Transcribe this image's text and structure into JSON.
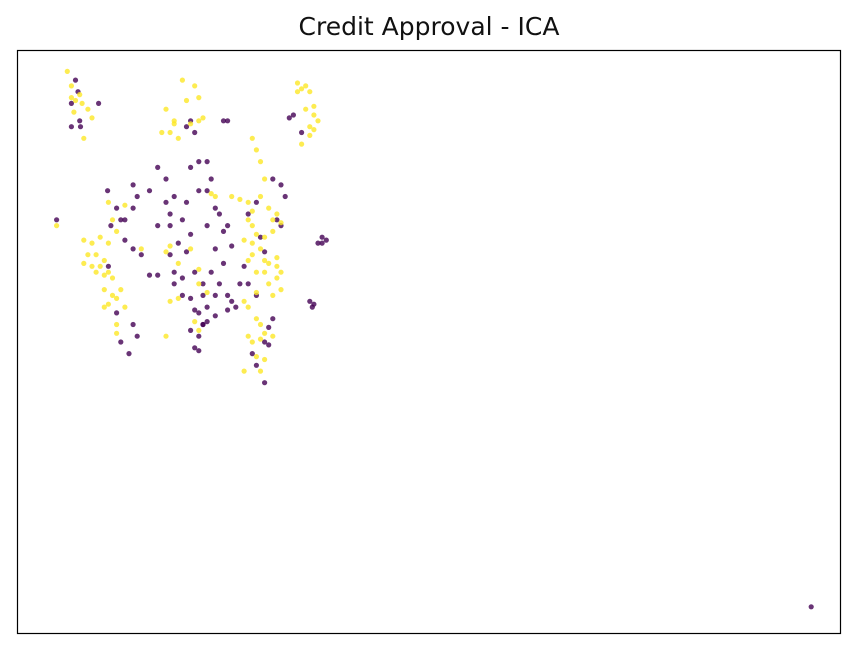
{
  "chart_data": {
    "type": "scatter",
    "title": "Credit Approval - ICA",
    "xlabel": "",
    "ylabel": "",
    "xlim": [
      0,
      100
    ],
    "ylim": [
      0,
      100
    ],
    "ticks": false,
    "grid": false,
    "legend": "none",
    "colors": {
      "class_0": "#440154",
      "class_1": "#fde725"
    },
    "point_alpha": 0.8,
    "series": [
      {
        "color": "#440154",
        "points": [
          [
            7.0,
            95.0
          ],
          [
            7.3,
            93.0
          ],
          [
            6.5,
            91.0
          ],
          [
            7.5,
            88.0
          ],
          [
            9.8,
            91.0
          ],
          [
            6.5,
            87.0
          ],
          [
            7.6,
            87.0
          ],
          [
            4.7,
            71.0
          ],
          [
            12.5,
            71.0
          ],
          [
            10.9,
            76.0
          ],
          [
            12.0,
            73.0
          ],
          [
            14.0,
            73.0
          ],
          [
            11.3,
            70.0
          ],
          [
            13.0,
            71.0
          ],
          [
            14.0,
            77.0
          ],
          [
            14.5,
            75.0
          ],
          [
            13.0,
            67.5
          ],
          [
            14.0,
            66.0
          ],
          [
            15.0,
            65.0
          ],
          [
            16.0,
            61.5
          ],
          [
            11.0,
            63.0
          ],
          [
            12.0,
            55.0
          ],
          [
            14.0,
            53.0
          ],
          [
            12.5,
            50.0
          ],
          [
            14.5,
            51.0
          ],
          [
            13.5,
            48.0
          ],
          [
            17.0,
            80.0
          ],
          [
            16.0,
            76.0
          ],
          [
            18.0,
            78.0
          ],
          [
            18.0,
            74.0
          ],
          [
            19.0,
            75.0
          ],
          [
            20.5,
            74.0
          ],
          [
            18.5,
            72.0
          ],
          [
            17.0,
            70.0
          ],
          [
            18.5,
            70.0
          ],
          [
            20.0,
            71.0
          ],
          [
            19.5,
            67.0
          ],
          [
            21.0,
            68.5
          ],
          [
            18.5,
            65.0
          ],
          [
            20.5,
            65.5
          ],
          [
            19.0,
            62.0
          ],
          [
            17.0,
            61.5
          ],
          [
            20.0,
            61.0
          ],
          [
            21.5,
            62.0
          ],
          [
            20.0,
            58.0
          ],
          [
            19.0,
            60.0
          ],
          [
            22.5,
            60.0
          ],
          [
            21.0,
            57.5
          ],
          [
            22.5,
            58.0
          ],
          [
            21.5,
            55.5
          ],
          [
            23.0,
            56.0
          ],
          [
            22.5,
            53.0
          ],
          [
            21.0,
            80.0
          ],
          [
            22.0,
            81.0
          ],
          [
            23.0,
            81.0
          ],
          [
            23.5,
            78.0
          ],
          [
            23.0,
            76.0
          ],
          [
            22.0,
            76.0
          ],
          [
            24.0,
            73.0
          ],
          [
            23.0,
            70.0
          ],
          [
            24.5,
            72.0
          ],
          [
            24.0,
            66.0
          ],
          [
            25.0,
            69.0
          ],
          [
            25.5,
            70.0
          ],
          [
            26.0,
            66.5
          ],
          [
            25.0,
            63.5
          ],
          [
            23.5,
            62.0
          ],
          [
            24.5,
            60.0
          ],
          [
            25.5,
            58.0
          ],
          [
            24.0,
            58.0
          ],
          [
            26.0,
            57.0
          ],
          [
            27.0,
            60.0
          ],
          [
            26.5,
            56.0
          ],
          [
            25.5,
            55.5
          ],
          [
            24.0,
            54.5
          ],
          [
            23.0,
            53.5
          ],
          [
            22.0,
            55.0
          ],
          [
            20.5,
            87.0
          ],
          [
            21.0,
            88.0
          ],
          [
            21.5,
            86.0
          ],
          [
            25.0,
            88.0
          ],
          [
            25.5,
            88.0
          ],
          [
            22.0,
            51.0
          ],
          [
            22.5,
            53.0
          ],
          [
            21.0,
            52.0
          ],
          [
            22.0,
            48.5
          ],
          [
            21.5,
            49.0
          ],
          [
            28.0,
            60.0
          ],
          [
            29.0,
            58.0
          ],
          [
            27.5,
            63.0
          ],
          [
            29.0,
            74.0
          ],
          [
            31.0,
            78.0
          ],
          [
            32.0,
            77.0
          ],
          [
            32.5,
            75.0
          ],
          [
            31.5,
            71.0
          ],
          [
            32.0,
            70.0
          ],
          [
            28.0,
            72.0
          ],
          [
            29.5,
            68.0
          ],
          [
            30.0,
            65.5
          ],
          [
            33.0,
            88.5
          ],
          [
            33.5,
            89.0
          ],
          [
            34.5,
            86.0
          ],
          [
            37.0,
            68.0
          ],
          [
            36.5,
            67.0
          ],
          [
            37.5,
            67.5
          ],
          [
            37.0,
            67.0
          ],
          [
            35.5,
            57.0
          ],
          [
            35.8,
            56.0
          ],
          [
            36.0,
            56.5
          ],
          [
            31.0,
            54.0
          ],
          [
            30.5,
            52.5
          ],
          [
            30.0,
            50.0
          ],
          [
            30.5,
            49.5
          ],
          [
            29.0,
            46.0
          ],
          [
            30.0,
            43.0
          ],
          [
            28.5,
            48.0
          ],
          [
            96.5,
            4.5
          ]
        ]
      },
      {
        "color": "#fde725",
        "points": [
          [
            6.0,
            96.5
          ],
          [
            6.5,
            94.0
          ],
          [
            7.5,
            92.5
          ],
          [
            7.0,
            91.5
          ],
          [
            6.5,
            92.0
          ],
          [
            7.8,
            91.0
          ],
          [
            6.8,
            89.5
          ],
          [
            8.5,
            90.0
          ],
          [
            9.0,
            88.5
          ],
          [
            8.0,
            85.0
          ],
          [
            20.0,
            95.0
          ],
          [
            21.5,
            94.0
          ],
          [
            20.5,
            91.5
          ],
          [
            22.0,
            92.0
          ],
          [
            18.0,
            90.0
          ],
          [
            19.0,
            88.0
          ],
          [
            18.5,
            86.0
          ],
          [
            19.5,
            85.0
          ],
          [
            21.0,
            87.5
          ],
          [
            22.0,
            88.0
          ],
          [
            22.5,
            88.5
          ],
          [
            19.0,
            87.5
          ],
          [
            17.5,
            86.0
          ],
          [
            34.0,
            94.5
          ],
          [
            34.5,
            93.5
          ],
          [
            34.0,
            93.0
          ],
          [
            35.0,
            94.0
          ],
          [
            35.5,
            93.0
          ],
          [
            35.0,
            90.0
          ],
          [
            36.0,
            90.5
          ],
          [
            36.0,
            89.0
          ],
          [
            36.5,
            88.0
          ],
          [
            35.5,
            87.0
          ],
          [
            34.5,
            84.0
          ],
          [
            35.5,
            85.5
          ],
          [
            36.0,
            86.5
          ],
          [
            28.5,
            85.0
          ],
          [
            29.0,
            83.0
          ],
          [
            29.5,
            81.0
          ],
          [
            30.0,
            78.0
          ],
          [
            4.7,
            70.0
          ],
          [
            8.0,
            67.5
          ],
          [
            9.0,
            67.0
          ],
          [
            10.0,
            68.0
          ],
          [
            11.0,
            67.0
          ],
          [
            12.0,
            69.0
          ],
          [
            8.5,
            65.0
          ],
          [
            9.5,
            65.0
          ],
          [
            10.5,
            64.0
          ],
          [
            8.0,
            63.5
          ],
          [
            9.0,
            63.0
          ],
          [
            10.0,
            63.0
          ],
          [
            9.5,
            62.0
          ],
          [
            10.5,
            61.5
          ],
          [
            11.5,
            61.0
          ],
          [
            12.5,
            59.0
          ],
          [
            11.0,
            62.0
          ],
          [
            10.5,
            59.0
          ],
          [
            11.5,
            58.0
          ],
          [
            11.0,
            56.5
          ],
          [
            12.0,
            57.5
          ],
          [
            13.0,
            56.0
          ],
          [
            10.5,
            56.0
          ],
          [
            12.0,
            51.5
          ],
          [
            12.0,
            53.0
          ],
          [
            11.5,
            71.0
          ],
          [
            11.0,
            74.0
          ],
          [
            13.0,
            73.5
          ],
          [
            15.0,
            66.0
          ],
          [
            18.0,
            51.0
          ],
          [
            22.0,
            52.0
          ],
          [
            21.5,
            53.5
          ],
          [
            18.0,
            65.5
          ],
          [
            18.5,
            66.5
          ],
          [
            19.5,
            63.5
          ],
          [
            21.0,
            66.0
          ],
          [
            22.0,
            60.0
          ],
          [
            19.5,
            57.5
          ],
          [
            22.0,
            62.5
          ],
          [
            27.0,
            74.5
          ],
          [
            28.0,
            74.0
          ],
          [
            28.5,
            72.5
          ],
          [
            29.5,
            75.0
          ],
          [
            30.5,
            73.0
          ],
          [
            28.0,
            71.0
          ],
          [
            28.5,
            70.0
          ],
          [
            27.5,
            67.5
          ],
          [
            28.5,
            67.0
          ],
          [
            29.0,
            68.5
          ],
          [
            30.0,
            68.0
          ],
          [
            31.0,
            71.0
          ],
          [
            31.5,
            72.0
          ],
          [
            31.0,
            69.0
          ],
          [
            32.0,
            70.5
          ],
          [
            30.0,
            64.0
          ],
          [
            30.5,
            63.5
          ],
          [
            30.0,
            62.0
          ],
          [
            31.5,
            63.0
          ],
          [
            31.5,
            61.0
          ],
          [
            30.5,
            60.0
          ],
          [
            31.0,
            58.0
          ],
          [
            32.0,
            59.0
          ],
          [
            31.5,
            64.5
          ],
          [
            32.0,
            62.0
          ],
          [
            29.0,
            62.0
          ],
          [
            28.0,
            64.0
          ],
          [
            28.5,
            65.0
          ],
          [
            29.0,
            58.5
          ],
          [
            29.5,
            66.0
          ],
          [
            27.5,
            57.0
          ],
          [
            28.0,
            56.0
          ],
          [
            29.0,
            54.0
          ],
          [
            29.5,
            53.0
          ],
          [
            30.0,
            51.5
          ],
          [
            28.5,
            50.0
          ],
          [
            31.0,
            51.0
          ],
          [
            29.5,
            50.5
          ],
          [
            28.0,
            51.0
          ],
          [
            29.0,
            47.5
          ],
          [
            30.0,
            47.0
          ],
          [
            29.5,
            45.0
          ],
          [
            27.5,
            45.0
          ],
          [
            18.5,
            57.0
          ],
          [
            23.0,
            58.5
          ],
          [
            23.5,
            75.5
          ],
          [
            24.0,
            75.0
          ],
          [
            26.0,
            75.0
          ]
        ]
      }
    ]
  }
}
